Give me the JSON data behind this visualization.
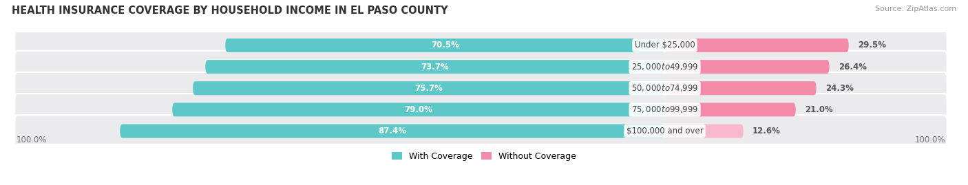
{
  "title": "HEALTH INSURANCE COVERAGE BY HOUSEHOLD INCOME IN EL PASO COUNTY",
  "source": "Source: ZipAtlas.com",
  "categories": [
    "Under $25,000",
    "$25,000 to $49,999",
    "$50,000 to $74,999",
    "$75,000 to $99,999",
    "$100,000 and over"
  ],
  "with_coverage": [
    70.5,
    73.7,
    75.7,
    79.0,
    87.4
  ],
  "without_coverage": [
    29.5,
    26.4,
    24.3,
    21.0,
    12.6
  ],
  "color_with": "#5ec8c8",
  "color_without_0": "#f48bab",
  "color_without_1": "#f48bab",
  "color_without_2": "#f48bab",
  "color_without_3": "#f48bab",
  "color_without_4": "#f9b8cb",
  "row_bg_even": "#efefef",
  "row_bg_odd": "#e4e4e8",
  "label_color_with": "#ffffff",
  "label_color_cat": "#444444",
  "label_color_woc": "#555555",
  "title_fontsize": 10.5,
  "label_fontsize": 8.5,
  "cat_fontsize": 8.5,
  "legend_fontsize": 9,
  "footer_fontsize": 8.5,
  "source_fontsize": 8,
  "figsize": [
    14.06,
    2.69
  ],
  "dpi": 100,
  "xlim_left": -105,
  "xlim_right": 50
}
